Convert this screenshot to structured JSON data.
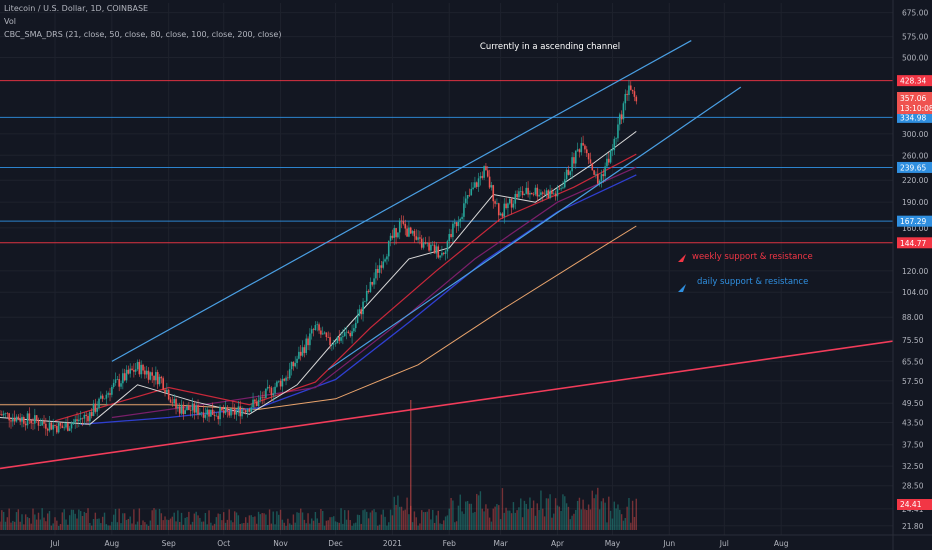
{
  "header": {
    "symbol_line": "Litecoin / U.S. Dollar, 1D, COINBASE",
    "vol_label": "Vol",
    "indicator_line": "CBC_SMA_DRS (21, close, 50, close, 80, close, 100, close, 200, close)"
  },
  "annotations": {
    "channel": "Currently in a ascending channel",
    "weekly": "weekly support & resistance",
    "daily": "daily support & resistance"
  },
  "colors": {
    "background": "#131722",
    "up_candle": "#26a69a",
    "down_candle": "#ef5350",
    "channel_line": "#4a9fe3",
    "weekly_level": "#f23645",
    "daily_level": "#2f8fe0",
    "sma21": "#d8d8d8",
    "sma50": "#c8283a",
    "sma80": "#7a1f6a",
    "sma100": "#2f3fd0",
    "sma200": "#e8a36c",
    "trendline": "#f23c5a"
  },
  "chart_data": {
    "type": "candlestick",
    "title": "Litecoin / U.S. Dollar, 1D, COINBASE",
    "y_scale": "log",
    "yticks": [
      21.8,
      24.41,
      28.5,
      32.5,
      37.5,
      43.5,
      49.5,
      57.5,
      65.5,
      75.5,
      88.0,
      104.0,
      120.0,
      160.0,
      190.0,
      220.0,
      260.0,
      300.0,
      500.0,
      575.0,
      675.0
    ],
    "ytick_labels": [
      "21.80",
      "24.41",
      "28.50",
      "32.50",
      "37.50",
      "43.50",
      "49.50",
      "57.50",
      "65.50",
      "75.50",
      "88.00",
      "104.00",
      "120.00",
      "160.00",
      "190.00",
      "220.00",
      "260.00",
      "300.00",
      "500.00",
      "575.00",
      "675.00"
    ],
    "xtick_labels": [
      "Jul",
      "Aug",
      "Sep",
      "Oct",
      "Nov",
      "Dec",
      "2021",
      "Feb",
      "Mar",
      "Apr",
      "May",
      "Jun",
      "Jul",
      "Aug"
    ],
    "ylim": [
      20.5,
      720
    ],
    "current_price": "357.06",
    "countdown": "13:10:08",
    "levels": [
      {
        "value": 428.34,
        "label": "428.34",
        "kind": "weekly"
      },
      {
        "value": 334.98,
        "label": "334.98",
        "kind": "daily"
      },
      {
        "value": 239.65,
        "label": "239.65",
        "kind": "daily"
      },
      {
        "value": 167.29,
        "label": "167.29",
        "kind": "daily"
      },
      {
        "value": 144.77,
        "label": "144.77",
        "kind": "weekly"
      }
    ],
    "channel_upper": [
      {
        "date": "2020-08-01",
        "value": 65.5
      },
      {
        "date": "2021-06-13",
        "value": 560
      }
    ],
    "channel_lower": [
      {
        "date": "2020-11-27",
        "value": 62
      },
      {
        "date": "2021-07-10",
        "value": 410
      }
    ],
    "long_trendline": [
      {
        "date": "2020-06-01",
        "value": 32
      },
      {
        "date": "2021-10-01",
        "value": 75
      }
    ],
    "price_path": [
      {
        "date": "2020-06-01",
        "value": 46
      },
      {
        "date": "2020-06-20",
        "value": 44
      },
      {
        "date": "2020-07-05",
        "value": 42
      },
      {
        "date": "2020-07-20",
        "value": 46
      },
      {
        "date": "2020-08-01",
        "value": 55
      },
      {
        "date": "2020-08-15",
        "value": 63
      },
      {
        "date": "2020-08-28",
        "value": 58
      },
      {
        "date": "2020-09-05",
        "value": 48
      },
      {
        "date": "2020-09-20",
        "value": 47
      },
      {
        "date": "2020-10-05",
        "value": 46
      },
      {
        "date": "2020-10-20",
        "value": 50
      },
      {
        "date": "2020-11-05",
        "value": 60
      },
      {
        "date": "2020-11-20",
        "value": 82
      },
      {
        "date": "2020-11-27",
        "value": 74
      },
      {
        "date": "2020-12-10",
        "value": 80
      },
      {
        "date": "2020-12-25",
        "value": 125
      },
      {
        "date": "2021-01-05",
        "value": 165
      },
      {
        "date": "2021-01-15",
        "value": 145
      },
      {
        "date": "2021-01-28",
        "value": 135
      },
      {
        "date": "2021-02-10",
        "value": 190
      },
      {
        "date": "2021-02-20",
        "value": 235
      },
      {
        "date": "2021-03-01",
        "value": 175
      },
      {
        "date": "2021-03-10",
        "value": 200
      },
      {
        "date": "2021-03-20",
        "value": 205
      },
      {
        "date": "2021-04-01",
        "value": 200
      },
      {
        "date": "2021-04-15",
        "value": 290
      },
      {
        "date": "2021-04-23",
        "value": 215
      },
      {
        "date": "2021-05-01",
        "value": 270
      },
      {
        "date": "2021-05-10",
        "value": 420
      },
      {
        "date": "2021-05-14",
        "value": 357
      }
    ],
    "sma21": [
      {
        "date": "2020-06-01",
        "value": 45
      },
      {
        "date": "2020-07-20",
        "value": 43
      },
      {
        "date": "2020-08-15",
        "value": 56
      },
      {
        "date": "2020-09-15",
        "value": 50
      },
      {
        "date": "2020-10-15",
        "value": 46
      },
      {
        "date": "2020-11-10",
        "value": 56
      },
      {
        "date": "2020-12-05",
        "value": 80
      },
      {
        "date": "2021-01-10",
        "value": 130
      },
      {
        "date": "2021-02-01",
        "value": 140
      },
      {
        "date": "2021-02-25",
        "value": 200
      },
      {
        "date": "2021-03-20",
        "value": 190
      },
      {
        "date": "2021-04-20",
        "value": 245
      },
      {
        "date": "2021-05-14",
        "value": 305
      }
    ],
    "sma50": [
      {
        "date": "2020-07-01",
        "value": 44
      },
      {
        "date": "2020-09-01",
        "value": 55
      },
      {
        "date": "2020-10-15",
        "value": 49
      },
      {
        "date": "2020-11-20",
        "value": 57
      },
      {
        "date": "2020-12-20",
        "value": 82
      },
      {
        "date": "2021-01-25",
        "value": 120
      },
      {
        "date": "2021-03-01",
        "value": 170
      },
      {
        "date": "2021-04-10",
        "value": 210
      },
      {
        "date": "2021-05-14",
        "value": 262
      }
    ],
    "sma80": [
      {
        "date": "2020-08-01",
        "value": 45
      },
      {
        "date": "2020-10-01",
        "value": 50
      },
      {
        "date": "2020-11-20",
        "value": 55
      },
      {
        "date": "2021-01-01",
        "value": 82
      },
      {
        "date": "2021-02-15",
        "value": 130
      },
      {
        "date": "2021-04-01",
        "value": 190
      },
      {
        "date": "2021-05-14",
        "value": 240
      }
    ],
    "sma100": [
      {
        "date": "2020-07-15",
        "value": 43
      },
      {
        "date": "2020-09-01",
        "value": 45
      },
      {
        "date": "2020-10-20",
        "value": 48
      },
      {
        "date": "2020-12-01",
        "value": 58
      },
      {
        "date": "2021-01-10",
        "value": 85
      },
      {
        "date": "2021-02-20",
        "value": 128
      },
      {
        "date": "2021-04-01",
        "value": 178
      },
      {
        "date": "2021-05-14",
        "value": 228
      }
    ],
    "sma200": [
      {
        "date": "2020-06-01",
        "value": 49
      },
      {
        "date": "2020-09-01",
        "value": 49
      },
      {
        "date": "2020-10-20",
        "value": 47.5
      },
      {
        "date": "2020-12-01",
        "value": 51
      },
      {
        "date": "2021-01-15",
        "value": 64
      },
      {
        "date": "2021-03-01",
        "value": 92
      },
      {
        "date": "2021-04-15",
        "value": 130
      },
      {
        "date": "2021-05-14",
        "value": 162
      }
    ]
  }
}
